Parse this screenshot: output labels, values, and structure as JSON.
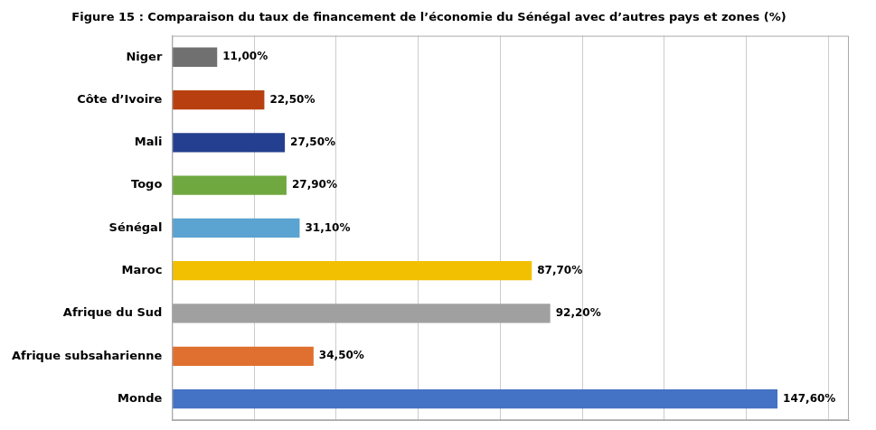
{
  "chart_data": {
    "type": "bar",
    "orientation": "horizontal",
    "title": "Figure 15 : Comparaison du taux de financement de l’économie du Sénégal avec d’autres pays et zones (%)",
    "categories": [
      "Monde",
      "Afrique subsaharienne",
      "Afrique du Sud",
      "Maroc",
      "Sénégal",
      "Togo",
      "Mali",
      "Côte d’Ivoire",
      "Niger"
    ],
    "values": [
      147.6,
      34.5,
      92.2,
      87.7,
      31.1,
      27.9,
      27.5,
      22.5,
      11.0
    ],
    "value_labels": [
      "147,60%",
      "34,50%",
      "92,20%",
      "87,70%",
      "31,10%",
      "27,90%",
      "27,50%",
      "22,50%",
      "11,00%"
    ],
    "colors": [
      "#4472C4",
      "#E07030",
      "#A0A0A0",
      "#F2C000",
      "#5BA3D0",
      "#70A840",
      "#243F8F",
      "#B84010",
      "#707070"
    ],
    "xlim": [
      0,
      165
    ],
    "xticks": [
      0,
      20,
      40,
      60,
      80,
      100,
      120,
      140,
      160
    ],
    "grid": true,
    "data_labels": true,
    "tick_labels": "y"
  }
}
